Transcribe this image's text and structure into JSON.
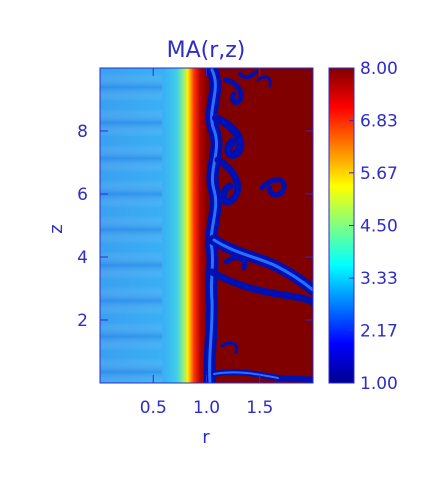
{
  "chart_data": {
    "type": "heatmap",
    "title": "MA(r,z)",
    "xlabel": "r",
    "ylabel": "z",
    "xlim": [
      0.0,
      2.0
    ],
    "ylim": [
      0.0,
      10.0
    ],
    "x_ticks": [
      "0.5",
      "1.0",
      "1.5"
    ],
    "y_ticks": [
      "2",
      "4",
      "6",
      "8"
    ],
    "colorbar": {
      "range": [
        1.0,
        8.0
      ],
      "ticks": [
        "8.00",
        "6.83",
        "5.67",
        "4.50",
        "3.33",
        "2.17",
        "1.00"
      ],
      "colormap": "rainbow (dark blue to dark red)"
    },
    "description_regions": {
      "r_0_to_0.7": "approx. 2.5-3.5 (light blue), periodic banding in z",
      "r_0.7_to_1.0": "sharp rise from ~4 to ~8 (green-yellow-red transition)",
      "r_1.0_to_2.0": "saturated 8.00 (dark red) with wavy filaments of ~1.0 (dark blue)"
    }
  },
  "colors": {
    "axis_text": "#2d2dc8",
    "low": "#00008f",
    "high": "#800000"
  }
}
